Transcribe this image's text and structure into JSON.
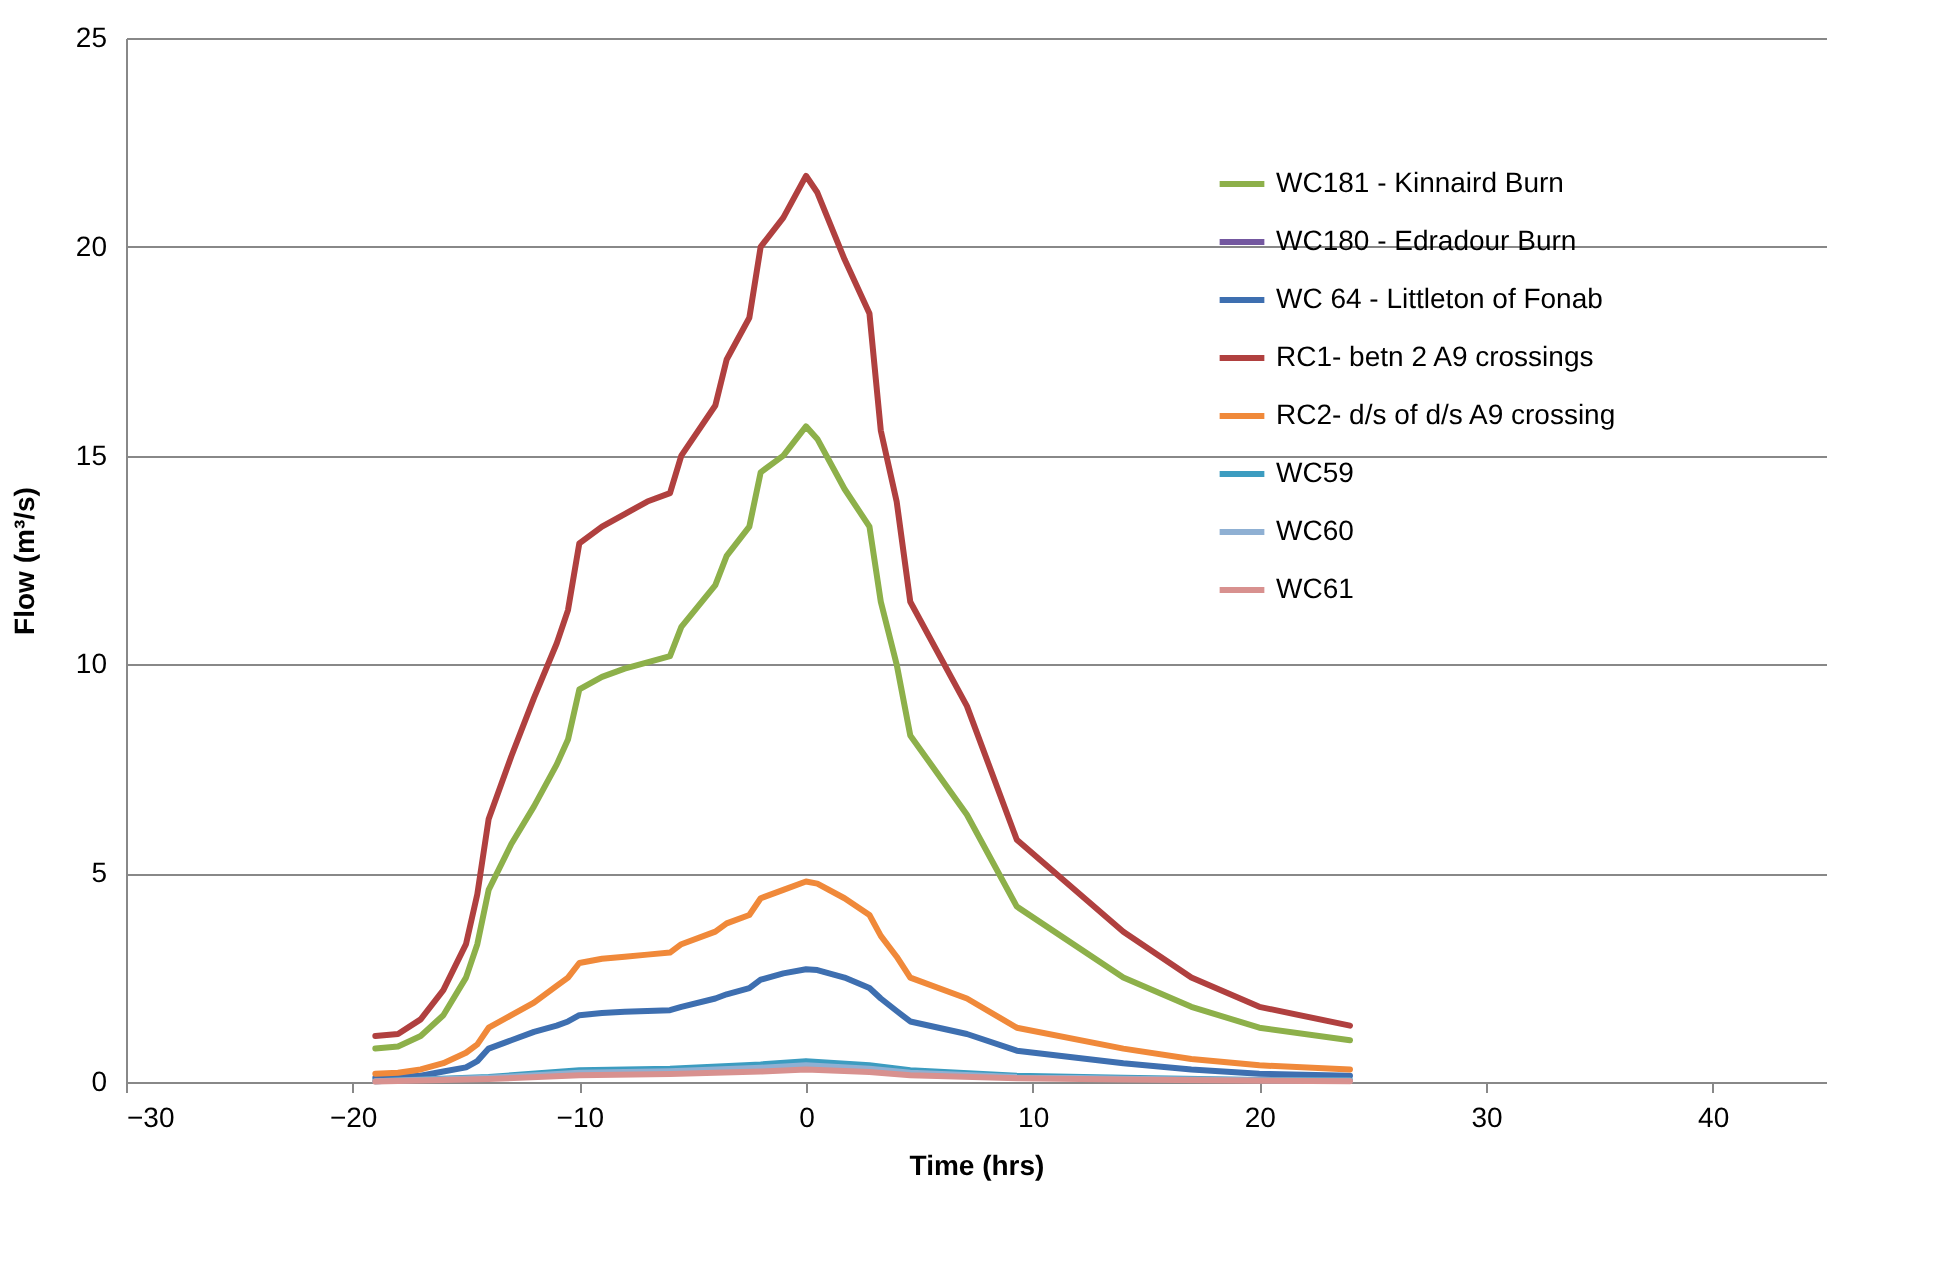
{
  "chart_data": {
    "type": "line",
    "xlabel": "Time (hrs)",
    "ylabel": "Flow (m³/s)",
    "xlim": [
      -30,
      45
    ],
    "xticks": [
      -30,
      -20,
      -10,
      0,
      10,
      20,
      30,
      40
    ],
    "ylim": [
      0,
      25
    ],
    "yticks": [
      0,
      5,
      10,
      15,
      20,
      25
    ],
    "grid": "y",
    "legend": "top right",
    "series": [
      {
        "name": "WC181 - Kinnaird Burn",
        "color": "#8db04a",
        "x": [
          -19,
          -18,
          -17,
          -16,
          -15,
          -14.5,
          -14,
          -13,
          -12,
          -11,
          -10.5,
          -10,
          -9,
          -8,
          -7,
          -6,
          -5.5,
          -4,
          -3.5,
          -2.5,
          -2,
          -1,
          0,
          0.5,
          1.7,
          2.8,
          3.3,
          4,
          4.6,
          7.1,
          9.3,
          14,
          17,
          20,
          24
        ],
        "values": [
          0.8,
          0.85,
          1.1,
          1.6,
          2.5,
          3.3,
          4.6,
          5.7,
          6.6,
          7.6,
          8.2,
          9.4,
          9.7,
          9.9,
          10.05,
          10.2,
          10.9,
          11.9,
          12.6,
          13.3,
          14.6,
          15,
          15.7,
          15.4,
          14.2,
          13.3,
          11.5,
          10,
          8.3,
          6.4,
          4.2,
          2.5,
          1.8,
          1.3,
          1
        ]
      },
      {
        "name": "WC180 - Edradour Burn",
        "color": "#7458a0"
      },
      {
        "name": "WC 64 - Littleton of Fonab",
        "color": "#3e6fb0",
        "x": [
          -19,
          -18,
          -17,
          -16,
          -15,
          -14.5,
          -14,
          -13,
          -12,
          -11,
          -10.5,
          -10,
          -9,
          -8,
          -7,
          -6,
          -5.5,
          -4,
          -3.5,
          -2.5,
          -2,
          -1,
          0,
          0.5,
          1.7,
          2.8,
          3.3,
          4,
          4.6,
          7.1,
          9.3,
          14,
          17,
          20,
          24
        ],
        "values": [
          0.1,
          0.12,
          0.15,
          0.25,
          0.35,
          0.5,
          0.8,
          1,
          1.2,
          1.35,
          1.45,
          1.6,
          1.65,
          1.68,
          1.7,
          1.72,
          1.8,
          2,
          2.1,
          2.25,
          2.45,
          2.6,
          2.7,
          2.68,
          2.5,
          2.25,
          2,
          1.7,
          1.45,
          1.15,
          0.75,
          0.45,
          0.3,
          0.2,
          0.15
        ]
      },
      {
        "name": "RC1- betn 2 A9 crossings",
        "color": "#b0403f",
        "x": [
          -19,
          -18,
          -17,
          -16,
          -15,
          -14.5,
          -14,
          -13,
          -12,
          -11,
          -10.5,
          -10,
          -9,
          -8,
          -7,
          -6,
          -5.5,
          -4,
          -3.5,
          -2.5,
          -2,
          -1,
          0,
          0.5,
          1.7,
          2.8,
          3.3,
          4,
          4.6,
          7.1,
          9.3,
          14,
          17,
          20,
          24
        ],
        "values": [
          1.1,
          1.15,
          1.5,
          2.2,
          3.3,
          4.5,
          6.3,
          7.8,
          9.2,
          10.5,
          11.3,
          12.9,
          13.3,
          13.6,
          13.9,
          14.1,
          15,
          16.2,
          17.3,
          18.3,
          20,
          20.7,
          21.7,
          21.3,
          19.7,
          18.4,
          15.6,
          13.9,
          11.5,
          9,
          5.8,
          3.6,
          2.5,
          1.8,
          1.35
        ]
      },
      {
        "name": "RC2- d/s of d/s A9 crossing",
        "color": "#f0893a",
        "x": [
          -19,
          -18,
          -17,
          -16,
          -15,
          -14.5,
          -14,
          -13,
          -12,
          -11,
          -10.5,
          -10,
          -9,
          -8,
          -7,
          -6,
          -5.5,
          -4,
          -3.5,
          -2.5,
          -2,
          -1,
          0,
          0.5,
          1.7,
          2.8,
          3.3,
          4,
          4.6,
          7.1,
          9.3,
          14,
          17,
          20,
          24
        ],
        "values": [
          0.2,
          0.22,
          0.3,
          0.45,
          0.7,
          0.9,
          1.3,
          1.6,
          1.9,
          2.3,
          2.5,
          2.85,
          2.95,
          3,
          3.05,
          3.1,
          3.3,
          3.6,
          3.8,
          4,
          4.4,
          4.6,
          4.8,
          4.75,
          4.4,
          4,
          3.5,
          3,
          2.5,
          2,
          1.3,
          0.8,
          0.55,
          0.4,
          0.3
        ]
      },
      {
        "name": "WC59",
        "color": "#3c9cc0",
        "x": [
          -19,
          -14,
          -10,
          -6,
          -2,
          0,
          2.8,
          4.6,
          9.3,
          14,
          20,
          24
        ],
        "values": [
          0.02,
          0.12,
          0.28,
          0.32,
          0.42,
          0.5,
          0.4,
          0.28,
          0.15,
          0.1,
          0.05,
          0.04
        ]
      },
      {
        "name": "WC60",
        "color": "#8fb0d3",
        "x": [
          -19,
          -14,
          -10,
          -6,
          -2,
          0,
          2.8,
          4.6,
          9.3,
          14,
          20,
          24
        ],
        "values": [
          0.02,
          0.1,
          0.22,
          0.26,
          0.34,
          0.4,
          0.32,
          0.22,
          0.12,
          0.08,
          0.04,
          0.03
        ]
      },
      {
        "name": "WC61",
        "color": "#d8918f",
        "x": [
          -19,
          -14,
          -10,
          -6,
          -2,
          0,
          2.8,
          4.6,
          9.3,
          14,
          20,
          24
        ],
        "values": [
          0.01,
          0.07,
          0.16,
          0.19,
          0.25,
          0.3,
          0.24,
          0.16,
          0.09,
          0.06,
          0.03,
          0.02
        ]
      }
    ]
  }
}
